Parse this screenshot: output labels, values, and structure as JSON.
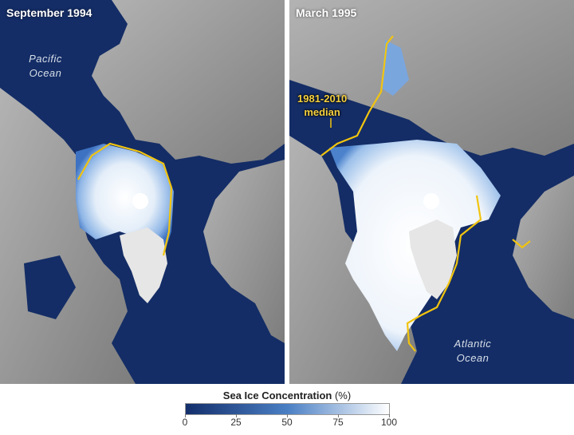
{
  "panels": {
    "left": {
      "title": "September 1994",
      "ocean_label_line1": "Pacific",
      "ocean_label_line2": "Ocean"
    },
    "right": {
      "title": "March 1995",
      "ocean_label_line1": "Atlantic",
      "ocean_label_line2": "Ocean",
      "median_label_line1": "1981-2010",
      "median_label_line2": "median"
    }
  },
  "legend": {
    "title": "Sea Ice Concentration",
    "unit": "(%)",
    "ticks": [
      "0",
      "25",
      "50",
      "75",
      "100"
    ],
    "colors": {
      "low": "#132e6b",
      "mid": "#4a7fc4",
      "high": "#ffffff"
    }
  },
  "colors": {
    "ocean": "#142d66",
    "land": "#9a9a9a",
    "ice": "#f2f6fb",
    "median_line": "#f1c40f",
    "greenland": "#e6e6e6"
  }
}
